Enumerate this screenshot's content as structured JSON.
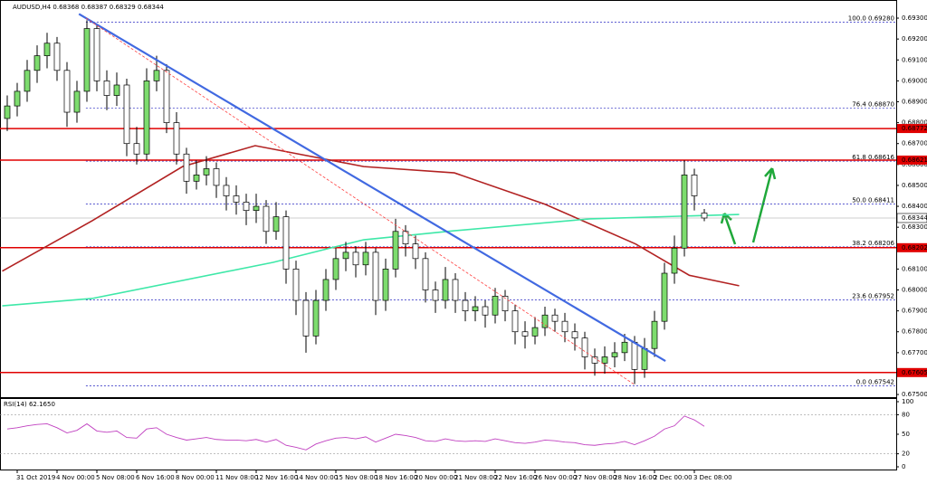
{
  "header": "AUDUSD,H4  0.68368 0.68387 0.68329 0.68344",
  "chart_data": {
    "type": "candlestick",
    "ylim": [
      0.67483,
      0.69365
    ],
    "yticks": [
      {
        "value": 0.675,
        "label": "0.67500"
      },
      {
        "value": 0.677,
        "label": "0.67700"
      },
      {
        "value": 0.678,
        "label": "0.67800"
      },
      {
        "value": 0.679,
        "label": "0.67900"
      },
      {
        "value": 0.68,
        "label": "0.68000"
      },
      {
        "value": 0.681,
        "label": "0.68100"
      },
      {
        "value": 0.683,
        "label": "0.68300"
      },
      {
        "value": 0.684,
        "label": "0.68400"
      },
      {
        "value": 0.685,
        "label": "0.68500"
      },
      {
        "value": 0.686,
        "label": "0.68600"
      },
      {
        "value": 0.687,
        "label": "0.68700"
      },
      {
        "value": 0.688,
        "label": "0.68800"
      },
      {
        "value": 0.689,
        "label": "0.68900"
      },
      {
        "value": 0.69,
        "label": "0.69000"
      },
      {
        "value": 0.691,
        "label": "0.69100"
      },
      {
        "value": 0.692,
        "label": "0.69200"
      },
      {
        "value": 0.693,
        "label": "0.69300"
      }
    ],
    "xticks": [
      {
        "value": 1,
        "label": "31 Oct 2019"
      },
      {
        "value": 5,
        "label": "4 Nov 00:00"
      },
      {
        "value": 9,
        "label": "5 Nov 08:00"
      },
      {
        "value": 13,
        "label": "6 Nov 16:00"
      },
      {
        "value": 17,
        "label": "8 Nov 00:00"
      },
      {
        "value": 21,
        "label": "11 Nov 08:00"
      },
      {
        "value": 25,
        "label": "12 Nov 16:00"
      },
      {
        "value": 29,
        "label": "14 Nov 00:00"
      },
      {
        "value": 33,
        "label": "15 Nov 08:00"
      },
      {
        "value": 37,
        "label": "18 Nov 16:00"
      },
      {
        "value": 41,
        "label": "20 Nov 00:00"
      },
      {
        "value": 45,
        "label": "21 Nov 08:00"
      },
      {
        "value": 49,
        "label": "22 Nov 16:00"
      },
      {
        "value": 53,
        "label": "26 Nov 00:00"
      },
      {
        "value": 57,
        "label": "27 Nov 08:00"
      },
      {
        "value": 61,
        "label": "28 Nov 16:00"
      },
      {
        "value": 65,
        "label": "2 Dec 00:00"
      },
      {
        "value": 69,
        "label": "3 Dec 08:00"
      }
    ],
    "bull_color": "#7ddc6e",
    "bear_color": "#ffffff",
    "candles": [
      [
        0.6882,
        0.6893,
        0.6876,
        0.6888
      ],
      [
        0.6888,
        0.6899,
        0.6883,
        0.6895
      ],
      [
        0.6895,
        0.691,
        0.689,
        0.6905
      ],
      [
        0.6905,
        0.6917,
        0.6899,
        0.6912
      ],
      [
        0.6912,
        0.6923,
        0.6906,
        0.6918
      ],
      [
        0.6918,
        0.6921,
        0.69,
        0.6905
      ],
      [
        0.6905,
        0.6909,
        0.6878,
        0.6885
      ],
      [
        0.6885,
        0.69,
        0.688,
        0.6895
      ],
      [
        0.6895,
        0.6929,
        0.689,
        0.6925
      ],
      [
        0.6925,
        0.6927,
        0.6895,
        0.69
      ],
      [
        0.69,
        0.6905,
        0.6886,
        0.6893
      ],
      [
        0.6893,
        0.6904,
        0.6888,
        0.6898
      ],
      [
        0.6898,
        0.6901,
        0.6864,
        0.687
      ],
      [
        0.687,
        0.6878,
        0.686,
        0.6865
      ],
      [
        0.6865,
        0.6906,
        0.6862,
        0.69
      ],
      [
        0.69,
        0.6912,
        0.6895,
        0.6905
      ],
      [
        0.6905,
        0.6908,
        0.6875,
        0.688
      ],
      [
        0.688,
        0.6885,
        0.686,
        0.6865
      ],
      [
        0.6865,
        0.6868,
        0.6846,
        0.6852
      ],
      [
        0.6852,
        0.6862,
        0.6848,
        0.6855
      ],
      [
        0.6855,
        0.6864,
        0.685,
        0.6858
      ],
      [
        0.6858,
        0.6861,
        0.6844,
        0.685
      ],
      [
        0.685,
        0.6854,
        0.6838,
        0.6845
      ],
      [
        0.6845,
        0.685,
        0.6836,
        0.6842
      ],
      [
        0.6842,
        0.6846,
        0.6831,
        0.6838
      ],
      [
        0.6838,
        0.6846,
        0.6832,
        0.684
      ],
      [
        0.684,
        0.6843,
        0.6822,
        0.6828
      ],
      [
        0.6828,
        0.6842,
        0.6824,
        0.6835
      ],
      [
        0.6835,
        0.6838,
        0.6803,
        0.681
      ],
      [
        0.681,
        0.6814,
        0.6788,
        0.6795
      ],
      [
        0.6795,
        0.6799,
        0.677,
        0.6778
      ],
      [
        0.6778,
        0.68,
        0.6774,
        0.6795
      ],
      [
        0.6795,
        0.681,
        0.679,
        0.6805
      ],
      [
        0.6805,
        0.682,
        0.68,
        0.6815
      ],
      [
        0.6815,
        0.6823,
        0.6809,
        0.6818
      ],
      [
        0.6818,
        0.6821,
        0.6806,
        0.6812
      ],
      [
        0.6812,
        0.6823,
        0.6807,
        0.6818
      ],
      [
        0.6818,
        0.682,
        0.6788,
        0.6795
      ],
      [
        0.6795,
        0.6815,
        0.679,
        0.681
      ],
      [
        0.681,
        0.6834,
        0.6806,
        0.6828
      ],
      [
        0.6828,
        0.6831,
        0.6816,
        0.6822
      ],
      [
        0.6822,
        0.6826,
        0.681,
        0.6815
      ],
      [
        0.6815,
        0.6818,
        0.6794,
        0.68
      ],
      [
        0.68,
        0.6804,
        0.6789,
        0.6795
      ],
      [
        0.6795,
        0.6811,
        0.6791,
        0.6805
      ],
      [
        0.6805,
        0.6808,
        0.6789,
        0.6795
      ],
      [
        0.6795,
        0.6799,
        0.6785,
        0.679
      ],
      [
        0.679,
        0.6797,
        0.6785,
        0.6792
      ],
      [
        0.6792,
        0.6795,
        0.6782,
        0.6788
      ],
      [
        0.6788,
        0.6801,
        0.6784,
        0.6797
      ],
      [
        0.6797,
        0.68,
        0.6785,
        0.679
      ],
      [
        0.679,
        0.6793,
        0.6774,
        0.678
      ],
      [
        0.678,
        0.6785,
        0.6772,
        0.6778
      ],
      [
        0.6778,
        0.6787,
        0.6774,
        0.6782
      ],
      [
        0.6782,
        0.6792,
        0.6778,
        0.6788
      ],
      [
        0.6788,
        0.6791,
        0.678,
        0.6785
      ],
      [
        0.6785,
        0.6789,
        0.6775,
        0.678
      ],
      [
        0.678,
        0.6784,
        0.6771,
        0.6777
      ],
      [
        0.6777,
        0.678,
        0.6762,
        0.6768
      ],
      [
        0.6768,
        0.6772,
        0.6759,
        0.6765
      ],
      [
        0.6765,
        0.6773,
        0.676,
        0.6768
      ],
      [
        0.6768,
        0.6775,
        0.6763,
        0.677
      ],
      [
        0.677,
        0.6779,
        0.6766,
        0.6775
      ],
      [
        0.6775,
        0.6778,
        0.6755,
        0.6762
      ],
      [
        0.6762,
        0.6777,
        0.6758,
        0.6772
      ],
      [
        0.6772,
        0.679,
        0.6768,
        0.6785
      ],
      [
        0.6785,
        0.6813,
        0.6781,
        0.6808
      ],
      [
        0.6808,
        0.6826,
        0.6803,
        0.682
      ],
      [
        0.682,
        0.6862,
        0.6816,
        0.6855
      ],
      [
        0.6855,
        0.6858,
        0.6838,
        0.6845
      ],
      [
        0.68368,
        0.68387,
        0.68329,
        0.68344
      ]
    ],
    "moving_averages": [
      {
        "color": "#b22222",
        "x": [
          -0.5,
          8.5,
          17.6,
          24.9,
          35.8,
          44.9,
          54,
          63.1,
          68.5,
          73.5
        ],
        "values": [
          0.6809,
          0.6833,
          0.6859,
          0.6869,
          0.6859,
          0.6856,
          0.6841,
          0.6822,
          0.6807,
          0.6802
        ]
      },
      {
        "color": "#3ee8a8",
        "x": [
          -0.5,
          8.5,
          26.7,
          35.8,
          44.9,
          58.5,
          73.5
        ],
        "values": [
          0.67924,
          0.67959,
          0.68132,
          0.6824,
          0.68283,
          0.6834,
          0.68361
        ]
      }
    ],
    "trendlines": [
      {
        "color": "#4169e1",
        "style": "solid",
        "x": [
          7.2,
          66.1
        ],
        "values": [
          0.6932,
          0.6766
        ]
      },
      {
        "color": "#ff4040",
        "style": "dashed",
        "x": [
          7.9,
          62.9
        ],
        "values": [
          0.693,
          0.6755
        ]
      }
    ],
    "fibonacci": {
      "color": "#2020c0",
      "x_start": 7.9,
      "levels": [
        {
          "value": 0.6928,
          "label": "100.0  0.69280"
        },
        {
          "value": 0.6887,
          "label": "76.4  0.68870"
        },
        {
          "value": 0.68616,
          "label": "61.8  0.68616"
        },
        {
          "value": 0.68411,
          "label": "50.0  0.68411"
        },
        {
          "value": 0.68206,
          "label": "38.2  0.68206"
        },
        {
          "value": 0.67952,
          "label": "23.6  0.67952"
        },
        {
          "value": 0.67542,
          "label": "0.0  0.67542"
        }
      ]
    },
    "levels": [
      {
        "value": 0.68772,
        "color": "#e00000"
      },
      {
        "value": 0.68621,
        "color": "#e00000"
      },
      {
        "value": 0.68202,
        "color": "#e00000"
      },
      {
        "value": 0.67605,
        "color": "#e00000"
      }
    ],
    "current_price": {
      "value": 0.68344,
      "color": "#a0a0a0"
    },
    "rsi": {
      "title": "RSI(14) 62.1650",
      "color": "#c040c0",
      "ylim": [
        0,
        100
      ],
      "yticks": [
        0,
        20,
        50,
        80,
        100
      ],
      "levels": [
        20,
        80
      ],
      "values": [
        58,
        60,
        63,
        65,
        66,
        60,
        52,
        56,
        66,
        55,
        53,
        55,
        45,
        44,
        58,
        60,
        50,
        45,
        41,
        43,
        45,
        42,
        41,
        41,
        40,
        42,
        38,
        42,
        33,
        30,
        26,
        35,
        40,
        44,
        45,
        43,
        46,
        38,
        44,
        50,
        48,
        45,
        40,
        39,
        43,
        40,
        39,
        40,
        39,
        43,
        40,
        37,
        36,
        38,
        41,
        40,
        38,
        37,
        34,
        33,
        35,
        36,
        39,
        34,
        40,
        47,
        58,
        63,
        78,
        72,
        62.165
      ]
    }
  }
}
